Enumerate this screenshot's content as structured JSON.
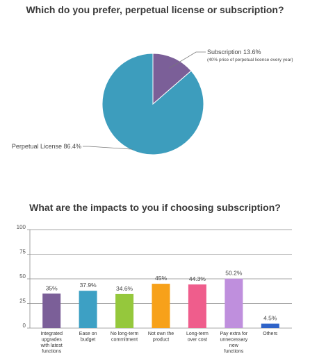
{
  "chart_data": [
    {
      "type": "pie",
      "title": "Which do you prefer, perpetual license or subscription?",
      "slices": [
        {
          "label": "Subscription",
          "value": 13.6,
          "value_text": "13.6%",
          "note": "(40% price of perpetual license every year)",
          "color": "#7b5f98"
        },
        {
          "label": "Perpetual License",
          "value": 86.4,
          "value_text": "86.4%",
          "note": "",
          "color": "#3d9dbd"
        }
      ]
    },
    {
      "type": "bar",
      "title": "What  are the impacts to you if choosing subscription?",
      "ylim": [
        0,
        100
      ],
      "yticks": [
        0,
        25,
        50,
        75,
        100
      ],
      "grid": true,
      "categories": [
        [
          "Integrated",
          "upgrades",
          "with latest",
          "functions"
        ],
        [
          "Ease on",
          "budget"
        ],
        [
          "No long-term",
          "commitment"
        ],
        [
          "Not own the",
          "product"
        ],
        [
          "Long-term",
          "over cost"
        ],
        [
          "Pay extra for",
          "unnecessary",
          "new",
          "functions"
        ],
        [
          "Others"
        ]
      ],
      "values": [
        35,
        37.9,
        34.6,
        45,
        44.3,
        50.2,
        4.5
      ],
      "value_labels": [
        "35%",
        "37.9%",
        "34.6%",
        "45%",
        "44.3%",
        "50.2%",
        "4.5%"
      ],
      "colors": [
        "#7b5f98",
        "#3da0c4",
        "#95c83c",
        "#f7a11a",
        "#ef5d8c",
        "#bf8fdd",
        "#2f63c8"
      ]
    }
  ]
}
